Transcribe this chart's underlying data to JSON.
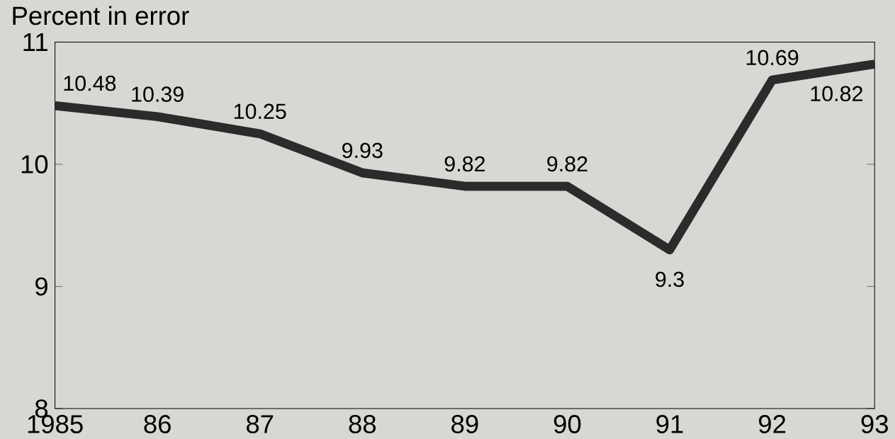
{
  "chart_data": {
    "type": "line",
    "ylabel": "Percent in error",
    "categories": [
      "1985",
      "86",
      "87",
      "88",
      "89",
      "90",
      "91",
      "92",
      "93"
    ],
    "values": [
      10.48,
      10.39,
      10.25,
      9.93,
      9.82,
      9.82,
      9.3,
      10.69,
      10.82
    ],
    "color": "#2b2b2b",
    "ylim": [
      8,
      11
    ],
    "yticks": [
      8,
      9,
      10,
      11
    ],
    "data_labels": true,
    "grid": false,
    "marker": "none",
    "line_style": "solid"
  }
}
